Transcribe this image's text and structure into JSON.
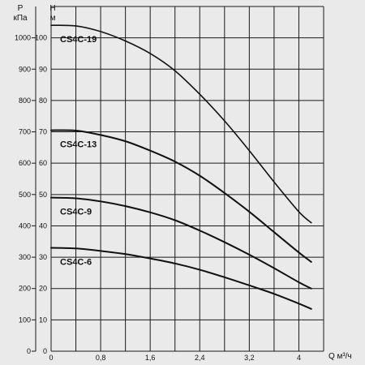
{
  "chart_data": {
    "type": "line",
    "xlabel": "Q м³/ч",
    "ylabel_left": "P кПа",
    "ylabel_right": "Н м",
    "xlim": [
      0,
      4.4
    ],
    "ylim_m": [
      0,
      110
    ],
    "ylim_kpa": [
      0,
      1100
    ],
    "x_ticks": [
      "0",
      "0,8",
      "1,6",
      "2,4",
      "3,2",
      "4"
    ],
    "x_tick_values": [
      0,
      0.8,
      1.6,
      2.4,
      3.2,
      4
    ],
    "y_ticks_kpa": [
      "0",
      "100",
      "200",
      "300",
      "400",
      "500",
      "600",
      "700",
      "800",
      "900",
      "1000"
    ],
    "y_ticks_m": [
      "0",
      "10",
      "20",
      "30",
      "40",
      "50",
      "60",
      "70",
      "80",
      "90",
      "100"
    ],
    "grid": true,
    "series": [
      {
        "name": "CS4C-19",
        "x": [
          0,
          0.4,
          0.8,
          1.2,
          1.6,
          2.0,
          2.4,
          2.8,
          3.2,
          3.6,
          4.0,
          4.2
        ],
        "y": [
          104,
          103.8,
          102,
          99,
          95,
          89.5,
          82,
          73.5,
          64,
          54,
          44.5,
          41
        ]
      },
      {
        "name": "CS4C-13",
        "x": [
          0,
          0.4,
          0.8,
          1.2,
          1.6,
          2.0,
          2.4,
          2.8,
          3.2,
          3.6,
          4.0,
          4.2
        ],
        "y": [
          70.5,
          70.4,
          69,
          67,
          64,
          60.5,
          56,
          50.5,
          44.5,
          38,
          31.5,
          28.5
        ]
      },
      {
        "name": "CS4C-9",
        "x": [
          0,
          0.4,
          0.8,
          1.2,
          1.6,
          2.0,
          2.4,
          2.8,
          3.2,
          3.6,
          4.0,
          4.2
        ],
        "y": [
          49,
          48.8,
          47.8,
          46.3,
          44.3,
          41.8,
          38.5,
          34.8,
          30.8,
          26.5,
          22,
          20
        ]
      },
      {
        "name": "CS4C-6",
        "x": [
          0,
          0.4,
          0.8,
          1.2,
          1.6,
          2.0,
          2.4,
          2.8,
          3.2,
          3.6,
          4.0,
          4.2
        ],
        "y": [
          33,
          32.8,
          32,
          31,
          29.6,
          28,
          26,
          23.6,
          21,
          18.3,
          15.2,
          13.5
        ]
      }
    ]
  }
}
